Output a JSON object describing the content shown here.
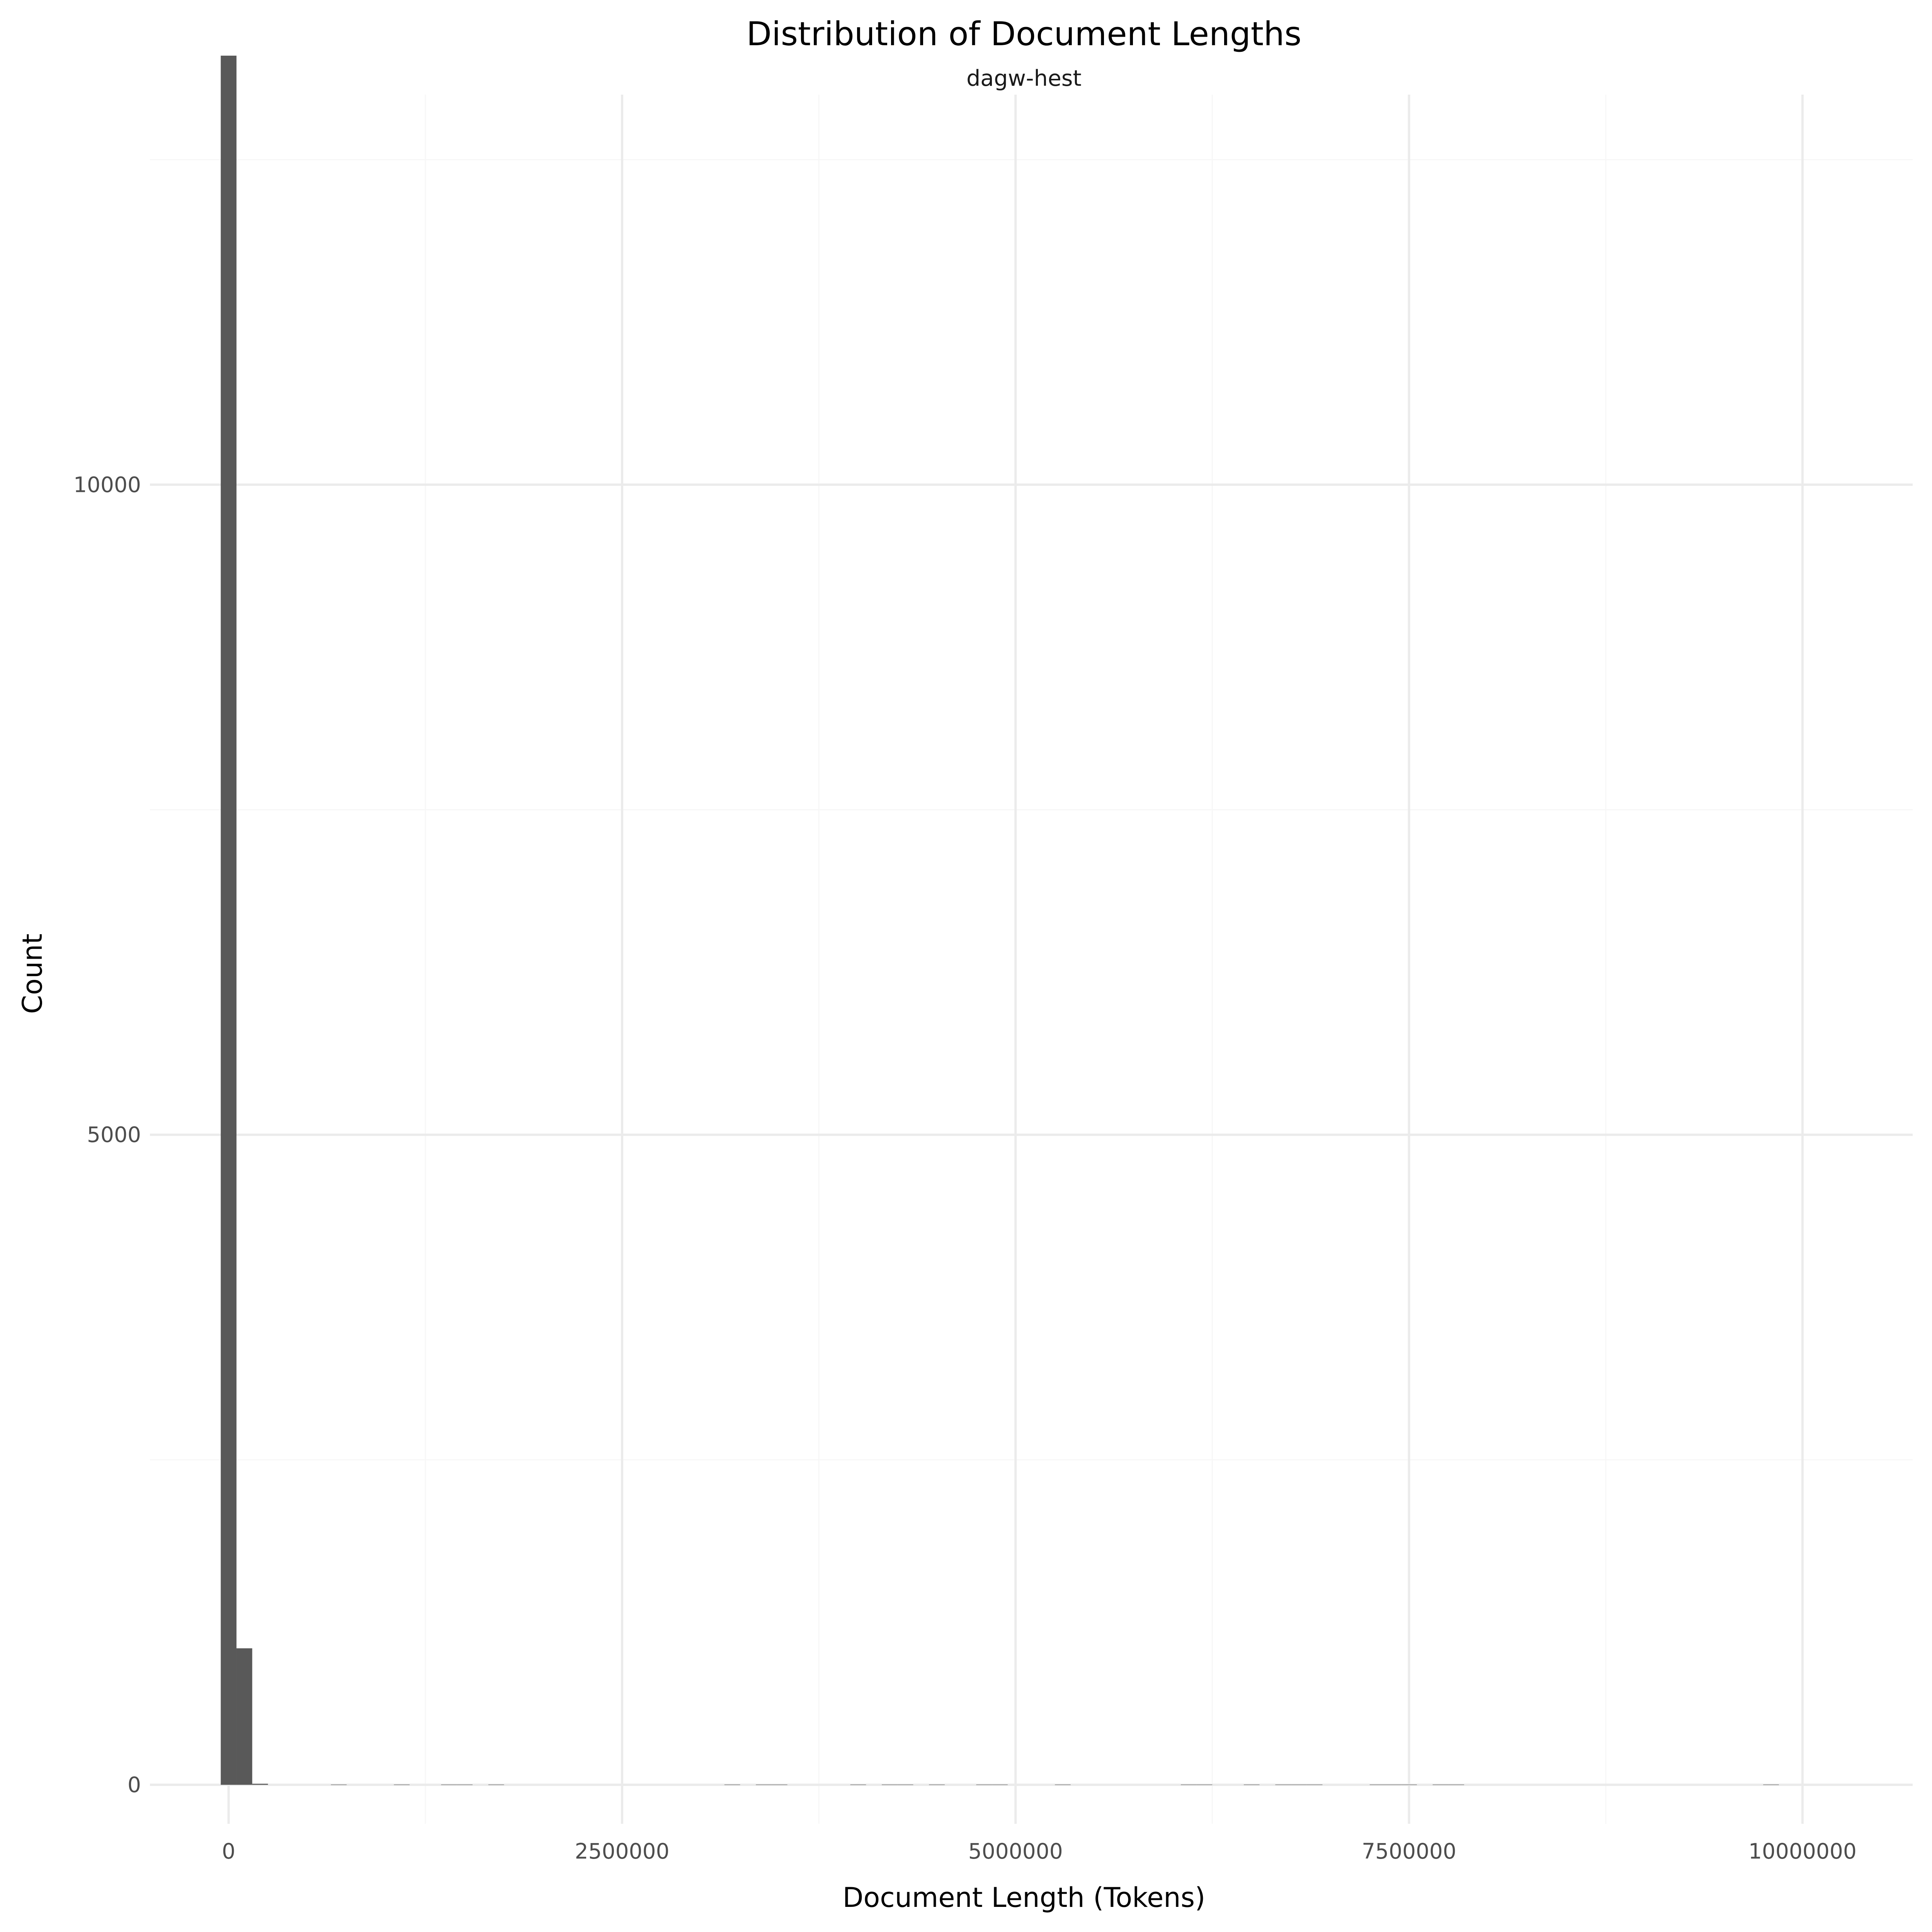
{
  "chart_data": {
    "type": "bar",
    "title": "Distribution of Document Lengths",
    "subtitle": "dagw-hest",
    "xlabel": "Document Length (Tokens)",
    "ylabel": "Count",
    "xlim": [
      -500000,
      10700000
    ],
    "ylim": [
      -300,
      13000
    ],
    "x_ticks": [
      0,
      2500000,
      5000000,
      7500000,
      10000000
    ],
    "x_tick_labels": [
      "0",
      "2500000",
      "5000000",
      "7500000",
      "10000000"
    ],
    "y_ticks": [
      0,
      5000,
      10000
    ],
    "y_tick_labels": [
      "0",
      "5000",
      "10000"
    ],
    "grid": true,
    "bin_width": 100000,
    "bars": [
      {
        "x_start": -50000,
        "x_end": 50000,
        "count": 13300
      },
      {
        "x_start": 50000,
        "x_end": 150000,
        "count": 1050
      },
      {
        "x_start": 150000,
        "x_end": 250000,
        "count": 8
      },
      {
        "x_start": 650000,
        "x_end": 750000,
        "count": 2
      },
      {
        "x_start": 1050000,
        "x_end": 1150000,
        "count": 2
      },
      {
        "x_start": 1350000,
        "x_end": 1450000,
        "count": 2
      },
      {
        "x_start": 1450000,
        "x_end": 1550000,
        "count": 2
      },
      {
        "x_start": 1650000,
        "x_end": 1750000,
        "count": 2
      },
      {
        "x_start": 3150000,
        "x_end": 3250000,
        "count": 2
      },
      {
        "x_start": 3350000,
        "x_end": 3450000,
        "count": 2
      },
      {
        "x_start": 3450000,
        "x_end": 3550000,
        "count": 2
      },
      {
        "x_start": 3950000,
        "x_end": 4050000,
        "count": 2
      },
      {
        "x_start": 4150000,
        "x_end": 4250000,
        "count": 2
      },
      {
        "x_start": 4250000,
        "x_end": 4350000,
        "count": 2
      },
      {
        "x_start": 4450000,
        "x_end": 4550000,
        "count": 2
      },
      {
        "x_start": 4750000,
        "x_end": 4850000,
        "count": 2
      },
      {
        "x_start": 4850000,
        "x_end": 4950000,
        "count": 2
      },
      {
        "x_start": 5250000,
        "x_end": 5350000,
        "count": 2
      },
      {
        "x_start": 6050000,
        "x_end": 6150000,
        "count": 2
      },
      {
        "x_start": 6150000,
        "x_end": 6250000,
        "count": 2
      },
      {
        "x_start": 6450000,
        "x_end": 6550000,
        "count": 2
      },
      {
        "x_start": 6650000,
        "x_end": 6750000,
        "count": 2
      },
      {
        "x_start": 6750000,
        "x_end": 6850000,
        "count": 2
      },
      {
        "x_start": 6850000,
        "x_end": 6950000,
        "count": 2
      },
      {
        "x_start": 7250000,
        "x_end": 7350000,
        "count": 2
      },
      {
        "x_start": 7350000,
        "x_end": 7450000,
        "count": 2
      },
      {
        "x_start": 7450000,
        "x_end": 7550000,
        "count": 2
      },
      {
        "x_start": 7650000,
        "x_end": 7750000,
        "count": 2
      },
      {
        "x_start": 7750000,
        "x_end": 7850000,
        "count": 2
      },
      {
        "x_start": 9750000,
        "x_end": 9850000,
        "count": 2
      }
    ],
    "colors": {
      "bar": "#595959",
      "grid_major": "#ebebeb",
      "grid_minor": "#f7f7f7",
      "background": "#ffffff"
    }
  }
}
